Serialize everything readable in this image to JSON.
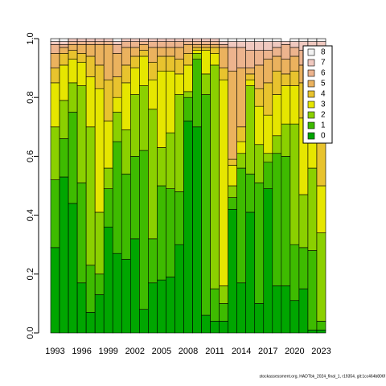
{
  "chart_data": {
    "type": "stacked_bar",
    "categories": [
      "1993",
      null,
      null,
      "1996",
      null,
      null,
      "1999",
      null,
      null,
      "2002",
      null,
      null,
      "2005",
      null,
      null,
      "2008",
      null,
      null,
      "2011",
      null,
      null,
      "2014",
      null,
      null,
      "2017",
      null,
      null,
      "2020",
      null,
      null,
      "2023"
    ],
    "series": [
      {
        "name": "0",
        "color": "#00A600",
        "values": [
          0.29,
          0.53,
          0.44,
          0.17,
          0.07,
          0.13,
          0.36,
          0.27,
          0.25,
          0.32,
          0.08,
          0.17,
          0.18,
          0.19,
          0.3,
          0.72,
          0.7,
          0.06,
          0.04,
          0.04,
          0.42,
          0.17,
          0.41,
          0.1,
          0.49,
          0.16,
          0.16,
          0.11,
          0.15,
          0.01,
          0.01
        ]
      },
      {
        "name": "1",
        "color": "#3EBB00",
        "values": [
          0.23,
          0.13,
          0.31,
          0.34,
          0.16,
          0.07,
          0.13,
          0.38,
          0.29,
          0.28,
          0.54,
          0.15,
          0.32,
          0.3,
          0.18,
          0.08,
          0.23,
          0.75,
          0.11,
          0.06,
          0.04,
          0.39,
          0.13,
          0.41,
          0.09,
          0.45,
          0.44,
          0.19,
          0.14,
          0.27,
          0.03
        ]
      },
      {
        "name": "2",
        "color": "#8BD000",
        "values": [
          0.18,
          0.13,
          0.1,
          0.33,
          0.47,
          0.21,
          0.07,
          0.1,
          0.15,
          0.21,
          0.22,
          0.44,
          0.13,
          0.19,
          0.33,
          0.02,
          0.02,
          0.07,
          0.76,
          0.06,
          0.04,
          0.05,
          0.3,
          0.13,
          0.03,
          0.06,
          0.11,
          0.41,
          0.18,
          0.28,
          0.3
        ]
      },
      {
        "name": "3",
        "color": "#E6E600",
        "values": [
          0.15,
          0.12,
          0.08,
          0.08,
          0.17,
          0.42,
          0.16,
          0.05,
          0.16,
          0.09,
          0.1,
          0.1,
          0.26,
          0.21,
          0.07,
          0.09,
          0.01,
          0.08,
          0.04,
          0.7,
          0.07,
          0.04,
          0.02,
          0.13,
          0.13,
          0.14,
          0.13,
          0.13,
          0.26,
          0.21,
          0.16
        ]
      },
      {
        "name": "4",
        "color": "#E8C32E",
        "values": [
          0.05,
          0.04,
          0.03,
          0.03,
          0.07,
          0.08,
          0.14,
          0.07,
          0.06,
          0.04,
          0.02,
          0.06,
          0.05,
          0.05,
          0.05,
          0.04,
          0.01,
          0.01,
          0.02,
          0.04,
          0.02,
          0.05,
          0.02,
          0.06,
          0.11,
          0.08,
          0.04,
          0.05,
          0.12,
          0.07,
          0.18
        ]
      },
      {
        "name": "5",
        "color": "#EBB25E",
        "values": [
          0.05,
          0.02,
          0.02,
          0.03,
          0.04,
          0.07,
          0.12,
          0.08,
          0.06,
          0.03,
          0.02,
          0.05,
          0.03,
          0.03,
          0.04,
          0.03,
          0.01,
          0.01,
          0.01,
          0.07,
          0.3,
          0.2,
          0.02,
          0.08,
          0.08,
          0.05,
          0.05,
          0.05,
          0.06,
          0.06,
          0.2
        ]
      },
      {
        "name": "6",
        "color": "#EDB48E",
        "values": [
          0.03,
          0.01,
          0.01,
          0.01,
          0.01,
          0.01,
          0.01,
          0.03,
          0.02,
          0.02,
          0.01,
          0.02,
          0.02,
          0.02,
          0.02,
          0.01,
          0.01,
          0.01,
          0.01,
          0.01,
          0.08,
          0.07,
          0.06,
          0.05,
          0.03,
          0.03,
          0.05,
          0.03,
          0.05,
          0.06,
          0.07
        ]
      },
      {
        "name": "7",
        "color": "#F0C9C0",
        "values": [
          0.01,
          0.01,
          0.01,
          0.01,
          0.01,
          0.01,
          0.01,
          0.01,
          0.01,
          0.01,
          0.01,
          0.01,
          0.01,
          0.01,
          0.01,
          0.01,
          0.01,
          0.01,
          0.01,
          0.01,
          0.02,
          0.02,
          0.03,
          0.03,
          0.03,
          0.02,
          0.01,
          0.02,
          0.03,
          0.03,
          0.04
        ]
      },
      {
        "name": "8",
        "color": "#F2F2F2",
        "values": [
          0.01,
          0.01,
          0,
          0,
          0,
          0,
          0,
          0.01,
          0,
          0,
          0,
          0,
          0,
          0,
          0,
          0,
          0,
          0,
          0,
          0.01,
          0.01,
          0.01,
          0.01,
          0.01,
          0.01,
          0.01,
          0,
          0.01,
          0.01,
          0.01,
          0.01
        ]
      }
    ],
    "ylim": [
      0,
      1
    ],
    "yticks": [
      {
        "value": 0,
        "label": "0.0"
      },
      0.2,
      0.4,
      0.6,
      0.8,
      {
        "value": 1,
        "label": "1.0"
      }
    ],
    "legend": "topright",
    "footnote": "stockassessment.org, HADTbk_2024_final_1, r19354, git:1cc464b806f"
  }
}
